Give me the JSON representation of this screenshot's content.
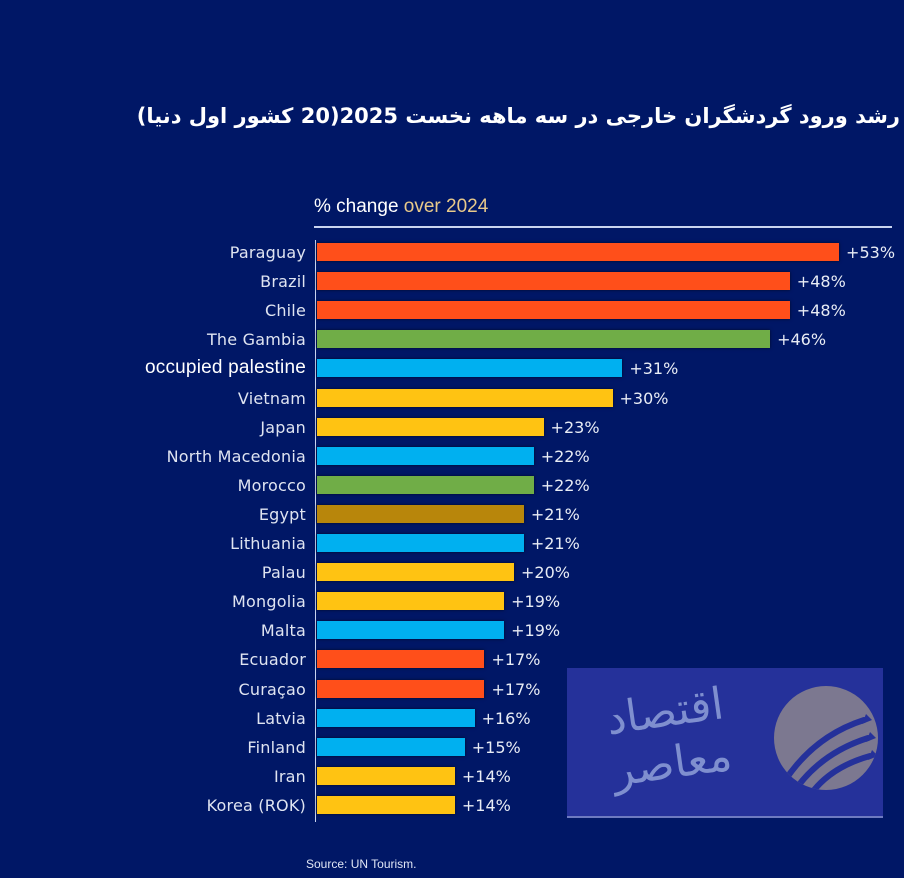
{
  "title": "رشد ورود گردشگران خارجی در سه ماهه نخست 2025(20 کشور اول دنیا)",
  "subtitle": {
    "prefix": "% change ",
    "accent": "over 2024"
  },
  "source": "Source: UN Tourism.",
  "watermark": {
    "text": "اقتصاد معاصر",
    "icon": "arrows-circle-logo-icon"
  },
  "colors": {
    "background": "#001766",
    "orange": "#ff4f1a",
    "green": "#70ad47",
    "blue": "#00b0f0",
    "yellow": "#ffc312",
    "gold": "#b8860b"
  },
  "chart_data": {
    "type": "bar",
    "orientation": "horizontal",
    "title": "رشد ورود گردشگران خارجی در سه ماهه نخست 2025(20 کشور اول دنیا)",
    "subtitle": "% change over 2024",
    "xlabel": "% change over 2024",
    "ylabel": "",
    "grid": false,
    "legend": null,
    "categories": [
      "Paraguay",
      "Brazil",
      "Chile",
      "The Gambia",
      "occupied palestine",
      "Vietnam",
      "Japan",
      "North Macedonia",
      "Morocco",
      "Egypt",
      "Lithuania",
      "Palau",
      "Mongolia",
      "Malta",
      "Ecuador",
      "Curaçao",
      "Latvia",
      "Finland",
      "Iran",
      "Korea (ROK)"
    ],
    "values": [
      53,
      48,
      48,
      46,
      31,
      30,
      23,
      22,
      22,
      21,
      21,
      20,
      19,
      19,
      17,
      17,
      16,
      15,
      14,
      14
    ],
    "labels": [
      "+53%",
      "+48%",
      "+48%",
      "+46%",
      "+31%",
      "+30%",
      "+23%",
      "+22%",
      "+22%",
      "+21%",
      "+21%",
      "+20%",
      "+19%",
      "+19%",
      "+17%",
      "+17%",
      "+16%",
      "+15%",
      "+14%",
      "+14%"
    ],
    "bar_colors": [
      "#ff4f1a",
      "#ff4f1a",
      "#ff4f1a",
      "#70ad47",
      "#00b0f0",
      "#ffc312",
      "#ffc312",
      "#00b0f0",
      "#70ad47",
      "#b8860b",
      "#00b0f0",
      "#ffc312",
      "#ffc312",
      "#00b0f0",
      "#ff4f1a",
      "#ff4f1a",
      "#00b0f0",
      "#00b0f0",
      "#ffc312",
      "#ffc312"
    ],
    "xlim": [
      0,
      55
    ],
    "source": "Source: UN Tourism."
  }
}
